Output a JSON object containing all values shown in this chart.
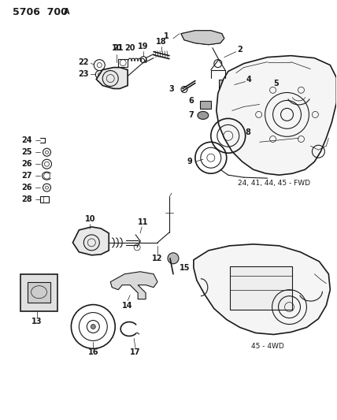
{
  "title": "5706  700 A",
  "bg_color": "#ffffff",
  "line_color": "#1a1a1a",
  "figsize": [
    4.28,
    5.33
  ],
  "dpi": 100,
  "fwd_note": "24, 41, 44, 45 - FWD",
  "awd_note": "45 - 4WD"
}
